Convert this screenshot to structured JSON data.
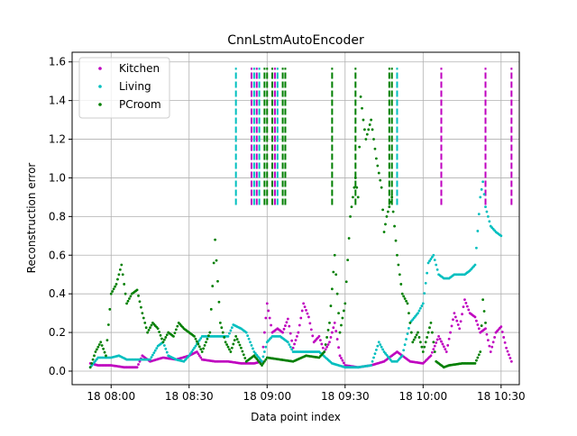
{
  "chart_data": {
    "type": "scatter",
    "title": "CnnLstmAutoEncoder",
    "xlabel": "Data point index",
    "ylabel": "Reconstruction error",
    "x_unit": "time",
    "xlim": [
      "07:45",
      "10:37"
    ],
    "ylim": [
      -0.07,
      1.65
    ],
    "x_ticks": [
      "18 08:00",
      "18 08:30",
      "18 09:00",
      "18 09:30",
      "18 10:00",
      "18 10:30"
    ],
    "x_tick_times": [
      "08:00",
      "08:30",
      "09:00",
      "09:30",
      "10:00",
      "10:30"
    ],
    "y_ticks": [
      "0.0",
      "0.2",
      "0.4",
      "0.6",
      "0.8",
      "1.0",
      "1.2",
      "1.4",
      "1.6"
    ],
    "y_tick_values": [
      0.0,
      0.2,
      0.4,
      0.6,
      0.8,
      1.0,
      1.2,
      1.4,
      1.6
    ],
    "grid": true,
    "legend_position": "top-left",
    "series": [
      {
        "name": "Kitchen",
        "color": "#bf00bf",
        "points": [
          [
            "07:52",
            0.04
          ],
          [
            "07:55",
            0.03
          ],
          [
            "08:00",
            0.03
          ],
          [
            "08:05",
            0.02
          ],
          [
            "08:10",
            0.02
          ],
          [
            "08:12",
            0.08
          ],
          [
            "08:15",
            0.05
          ],
          [
            "08:20",
            0.07
          ],
          [
            "08:25",
            0.06
          ],
          [
            "08:30",
            0.08
          ],
          [
            "08:33",
            0.1
          ],
          [
            "08:35",
            0.06
          ],
          [
            "08:40",
            0.05
          ],
          [
            "08:45",
            0.05
          ],
          [
            "08:50",
            0.04
          ],
          [
            "08:55",
            0.04
          ],
          [
            "08:58",
            0.05
          ],
          [
            "09:00",
            0.35
          ],
          [
            "09:02",
            0.2
          ],
          [
            "09:04",
            0.22
          ],
          [
            "09:06",
            0.2
          ],
          [
            "09:08",
            0.27
          ],
          [
            "09:10",
            0.12
          ],
          [
            "09:12",
            0.2
          ],
          [
            "09:14",
            0.35
          ],
          [
            "09:16",
            0.28
          ],
          [
            "09:18",
            0.15
          ],
          [
            "09:20",
            0.18
          ],
          [
            "09:22",
            0.1
          ],
          [
            "09:24",
            0.15
          ],
          [
            "09:26",
            0.25
          ],
          [
            "09:28",
            0.08
          ],
          [
            "09:30",
            0.03
          ],
          [
            "09:35",
            0.02
          ],
          [
            "09:40",
            0.03
          ],
          [
            "09:45",
            0.05
          ],
          [
            "09:50",
            0.1
          ],
          [
            "09:52",
            0.08
          ],
          [
            "09:55",
            0.05
          ],
          [
            "10:00",
            0.04
          ],
          [
            "10:03",
            0.08
          ],
          [
            "10:06",
            0.18
          ],
          [
            "10:09",
            0.1
          ],
          [
            "10:12",
            0.3
          ],
          [
            "10:14",
            0.22
          ],
          [
            "10:16",
            0.37
          ],
          [
            "10:18",
            0.3
          ],
          [
            "10:20",
            0.28
          ],
          [
            "10:22",
            0.2
          ],
          [
            "10:24",
            0.22
          ],
          [
            "10:26",
            0.1
          ],
          [
            "10:28",
            0.2
          ],
          [
            "10:30",
            0.23
          ],
          [
            "10:32",
            0.12
          ],
          [
            "10:34",
            0.05
          ]
        ]
      },
      {
        "name": "Living",
        "color": "#00bfbf",
        "points": [
          [
            "07:52",
            0.02
          ],
          [
            "07:55",
            0.07
          ],
          [
            "08:00",
            0.07
          ],
          [
            "08:03",
            0.08
          ],
          [
            "08:06",
            0.06
          ],
          [
            "08:10",
            0.06
          ],
          [
            "08:15",
            0.06
          ],
          [
            "08:18",
            0.13
          ],
          [
            "08:20",
            0.15
          ],
          [
            "08:22",
            0.08
          ],
          [
            "08:25",
            0.06
          ],
          [
            "08:28",
            0.05
          ],
          [
            "08:30",
            0.08
          ],
          [
            "08:32",
            0.12
          ],
          [
            "08:35",
            0.18
          ],
          [
            "08:40",
            0.18
          ],
          [
            "08:45",
            0.18
          ],
          [
            "08:47",
            0.24
          ],
          [
            "08:50",
            0.22
          ],
          [
            "08:52",
            0.2
          ],
          [
            "08:55",
            0.1
          ],
          [
            "08:58",
            0.05
          ],
          [
            "09:00",
            0.15
          ],
          [
            "09:02",
            0.18
          ],
          [
            "09:05",
            0.18
          ],
          [
            "09:08",
            0.15
          ],
          [
            "09:10",
            0.1
          ],
          [
            "09:15",
            0.1
          ],
          [
            "09:20",
            0.1
          ],
          [
            "09:25",
            0.04
          ],
          [
            "09:30",
            0.02
          ],
          [
            "09:35",
            0.02
          ],
          [
            "09:40",
            0.03
          ],
          [
            "09:43",
            0.15
          ],
          [
            "09:45",
            0.1
          ],
          [
            "09:48",
            0.05
          ],
          [
            "09:50",
            0.05
          ],
          [
            "09:52",
            0.08
          ],
          [
            "09:55",
            0.25
          ],
          [
            "09:58",
            0.3
          ],
          [
            "10:00",
            0.35
          ],
          [
            "10:02",
            0.56
          ],
          [
            "10:04",
            0.6
          ],
          [
            "10:06",
            0.5
          ],
          [
            "10:08",
            0.48
          ],
          [
            "10:10",
            0.48
          ],
          [
            "10:12",
            0.5
          ],
          [
            "10:14",
            0.5
          ],
          [
            "10:16",
            0.5
          ],
          [
            "10:18",
            0.52
          ],
          [
            "10:20",
            0.55
          ],
          [
            "10:22",
            0.9
          ],
          [
            "10:23",
            0.98
          ],
          [
            "10:24",
            0.85
          ],
          [
            "10:26",
            0.75
          ],
          [
            "10:28",
            0.72
          ],
          [
            "10:30",
            0.7
          ]
        ]
      },
      {
        "name": "PCroom",
        "color": "#007f00",
        "points": [
          [
            "07:52",
            0.02
          ],
          [
            "07:54",
            0.1
          ],
          [
            "07:56",
            0.15
          ],
          [
            "07:58",
            0.08
          ],
          [
            "08:00",
            0.4
          ],
          [
            "08:02",
            0.45
          ],
          [
            "08:04",
            0.55
          ],
          [
            "08:06",
            0.35
          ],
          [
            "08:08",
            0.4
          ],
          [
            "08:10",
            0.42
          ],
          [
            "08:12",
            0.3
          ],
          [
            "08:14",
            0.2
          ],
          [
            "08:16",
            0.25
          ],
          [
            "08:18",
            0.22
          ],
          [
            "08:20",
            0.15
          ],
          [
            "08:22",
            0.2
          ],
          [
            "08:24",
            0.18
          ],
          [
            "08:26",
            0.25
          ],
          [
            "08:28",
            0.22
          ],
          [
            "08:30",
            0.2
          ],
          [
            "08:32",
            0.18
          ],
          [
            "08:35",
            0.1
          ],
          [
            "08:38",
            0.2
          ],
          [
            "08:40",
            0.68
          ],
          [
            "08:42",
            0.25
          ],
          [
            "08:44",
            0.15
          ],
          [
            "08:46",
            0.1
          ],
          [
            "08:48",
            0.18
          ],
          [
            "08:50",
            0.12
          ],
          [
            "08:52",
            0.05
          ],
          [
            "08:55",
            0.08
          ],
          [
            "08:58",
            0.03
          ],
          [
            "09:00",
            0.07
          ],
          [
            "09:05",
            0.06
          ],
          [
            "09:10",
            0.05
          ],
          [
            "09:15",
            0.08
          ],
          [
            "09:20",
            0.07
          ],
          [
            "09:22",
            0.1
          ],
          [
            "09:24",
            0.25
          ],
          [
            "09:26",
            0.6
          ],
          [
            "09:28",
            0.2
          ],
          [
            "09:30",
            0.35
          ],
          [
            "09:32",
            0.8
          ],
          [
            "09:34",
            1.0
          ],
          [
            "09:35",
            0.9
          ],
          [
            "09:36",
            1.42
          ],
          [
            "09:37",
            1.3
          ],
          [
            "09:38",
            1.2
          ],
          [
            "09:40",
            1.3
          ],
          [
            "09:42",
            1.1
          ],
          [
            "09:44",
            0.95
          ],
          [
            "09:45",
            0.72
          ],
          [
            "09:46",
            0.8
          ],
          [
            "09:48",
            0.9
          ],
          [
            "09:50",
            0.6
          ],
          [
            "09:52",
            0.4
          ],
          [
            "09:54",
            0.35
          ],
          [
            "09:56",
            0.15
          ],
          [
            "09:58",
            0.2
          ],
          [
            "10:00",
            0.1
          ],
          [
            "10:03",
            0.25
          ],
          [
            "10:05",
            0.05
          ],
          [
            "10:08",
            0.02
          ],
          [
            "10:10",
            0.03
          ],
          [
            "10:15",
            0.04
          ],
          [
            "10:20",
            0.04
          ],
          [
            "10:22",
            0.1
          ],
          [
            "10:23",
            0.37
          ],
          [
            "10:24",
            0.25
          ]
        ]
      }
    ],
    "vlines": [
      {
        "series": "Living",
        "x": "08:48"
      },
      {
        "series": "Kitchen",
        "x": "08:54"
      },
      {
        "series": "Living",
        "x": "08:55"
      },
      {
        "series": "Kitchen",
        "x": "08:56"
      },
      {
        "series": "Living",
        "x": "08:57"
      },
      {
        "series": "PCroom",
        "x": "08:59"
      },
      {
        "series": "PCroom",
        "x": "09:00"
      },
      {
        "series": "PCroom",
        "x": "09:02"
      },
      {
        "series": "Kitchen",
        "x": "09:03"
      },
      {
        "series": "Living",
        "x": "09:04"
      },
      {
        "series": "PCroom",
        "x": "09:06"
      },
      {
        "series": "PCroom",
        "x": "09:07"
      },
      {
        "series": "PCroom",
        "x": "09:25"
      },
      {
        "series": "PCroom",
        "x": "09:34"
      },
      {
        "series": "PCroom",
        "x": "09:47"
      },
      {
        "series": "PCroom",
        "x": "09:48"
      },
      {
        "series": "Living",
        "x": "09:50"
      },
      {
        "series": "Kitchen",
        "x": "10:07"
      },
      {
        "series": "Kitchen",
        "x": "10:24"
      },
      {
        "series": "Kitchen",
        "x": "10:34"
      }
    ],
    "vline_range": [
      0.86,
      1.57
    ]
  }
}
